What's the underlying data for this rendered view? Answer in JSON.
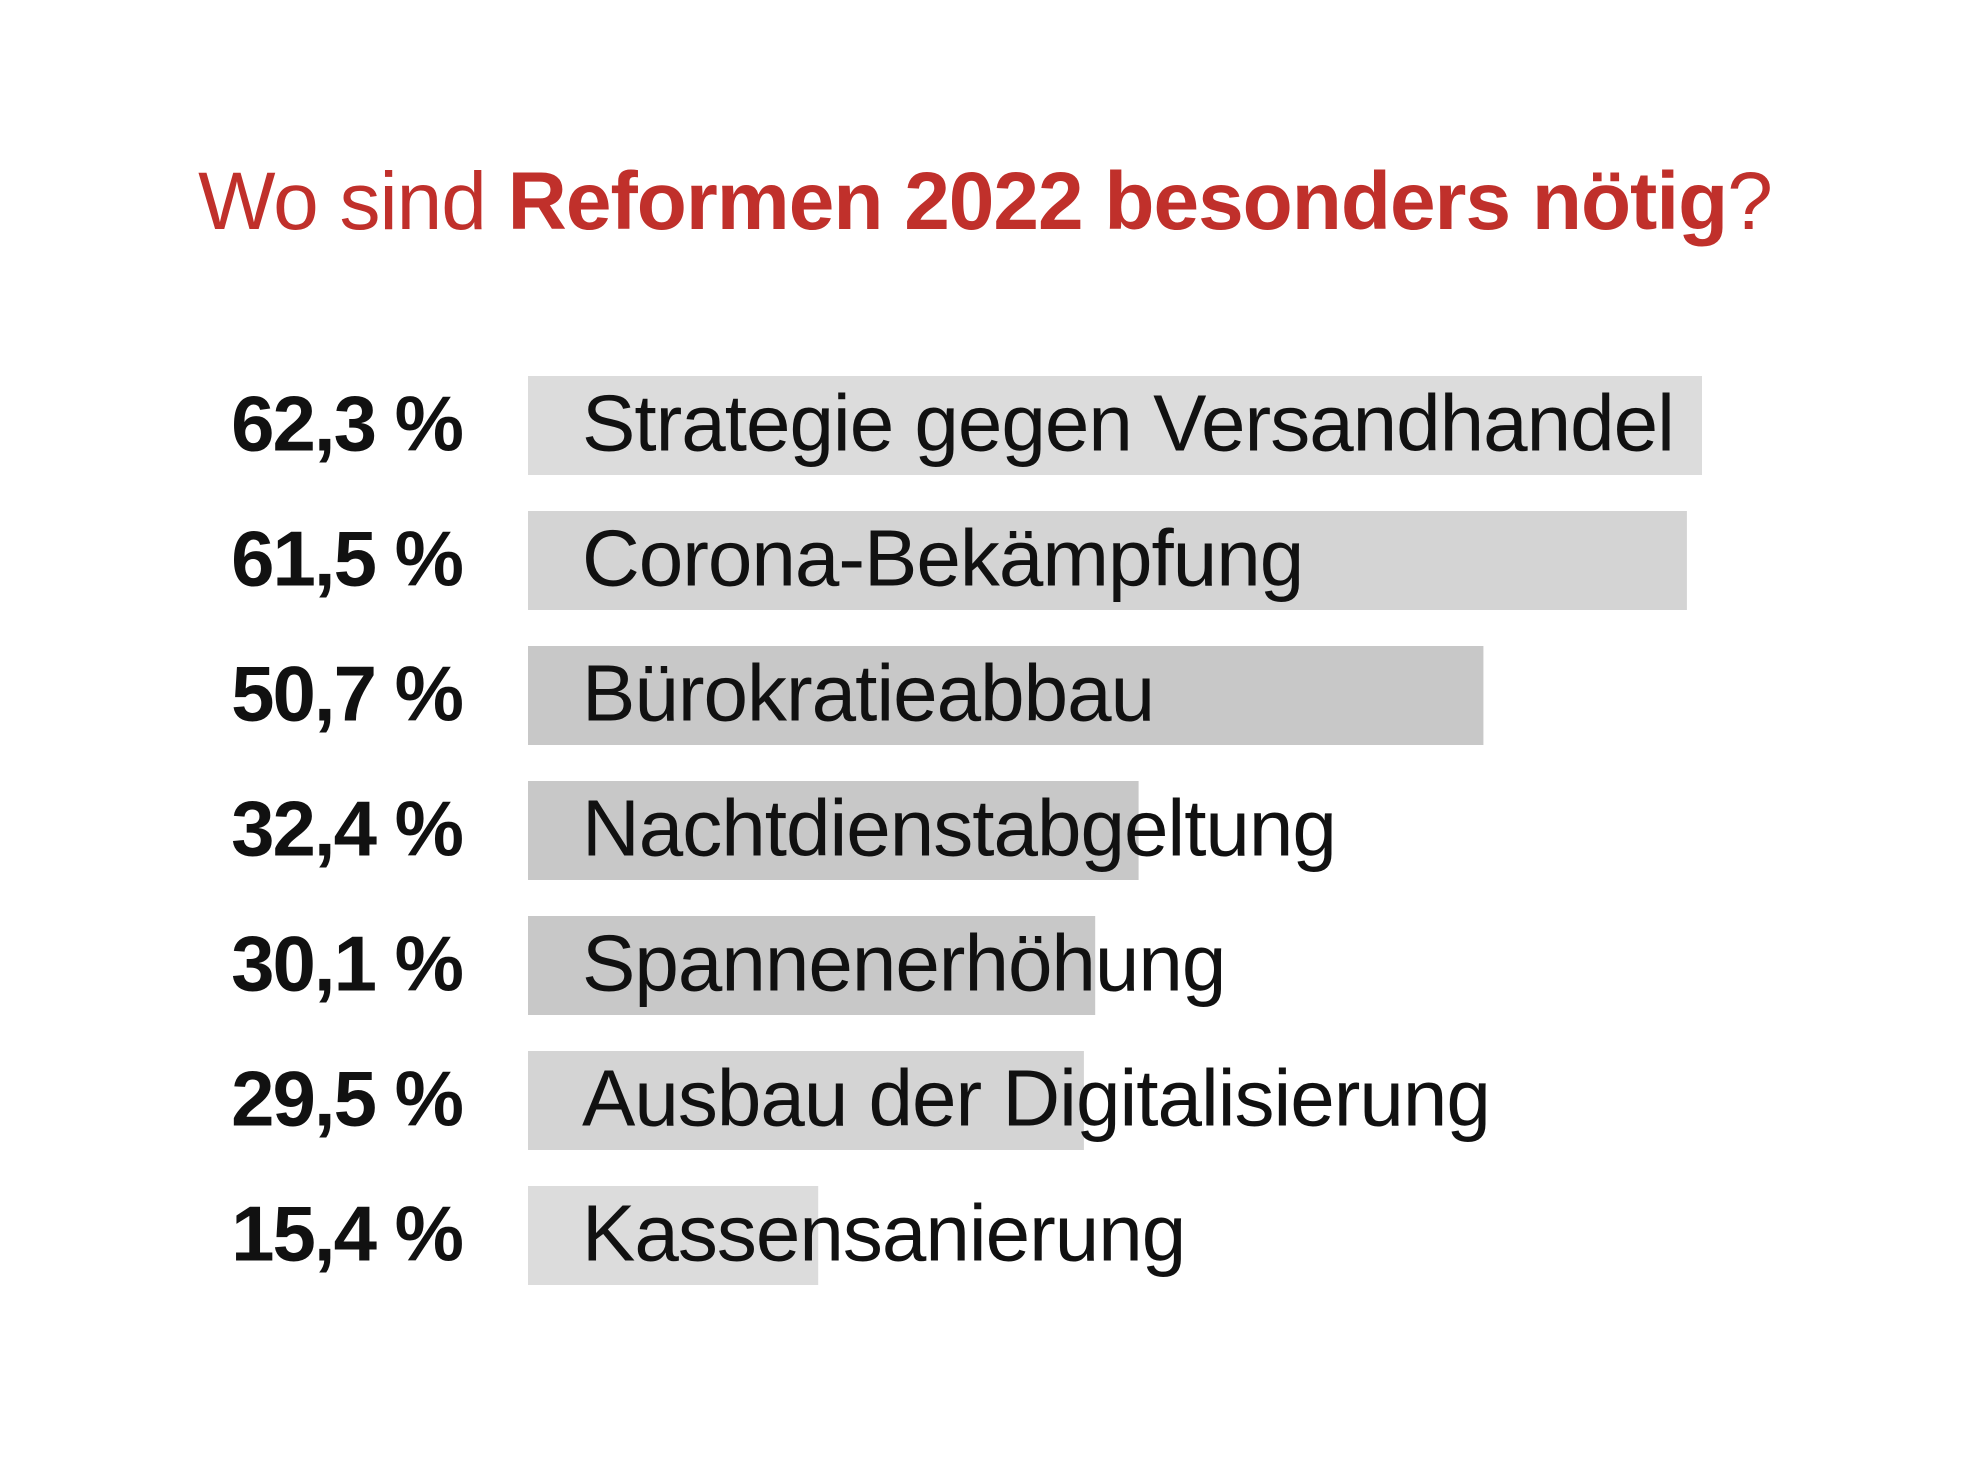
{
  "chart_data": {
    "type": "bar",
    "orientation": "horizontal",
    "title": {
      "prefix": "Wo sind ",
      "highlight": "Reformen 2022 besonders nötig",
      "suffix": "?"
    },
    "categories": [
      "Strategie gegen Versandhandel",
      "Corona-Bekämpfung",
      "Bürokratieabbau",
      "Nachtdienstabgeltung",
      "Spannenerhöhung",
      "Ausbau der Digitalisierung",
      "Kassensanierung"
    ],
    "values": [
      62.3,
      61.5,
      50.7,
      32.4,
      30.1,
      29.5,
      15.4
    ],
    "value_labels": [
      "62,3 %",
      "61,5 %",
      "50,7 %",
      "32,4 %",
      "30,1 %",
      "29,5 %",
      "15,4 %"
    ],
    "bar_colors": [
      "#dcdcdc",
      "#d4d4d4",
      "#c8c8c8",
      "#c8c8c8",
      "#c8c8c8",
      "#d4d4d4",
      "#dcdcdc"
    ],
    "xlim": [
      0,
      62.3
    ],
    "grid": false,
    "legend": "none"
  },
  "colors": {
    "title": "#c0302b",
    "text": "#111111",
    "background": "#ffffff"
  }
}
